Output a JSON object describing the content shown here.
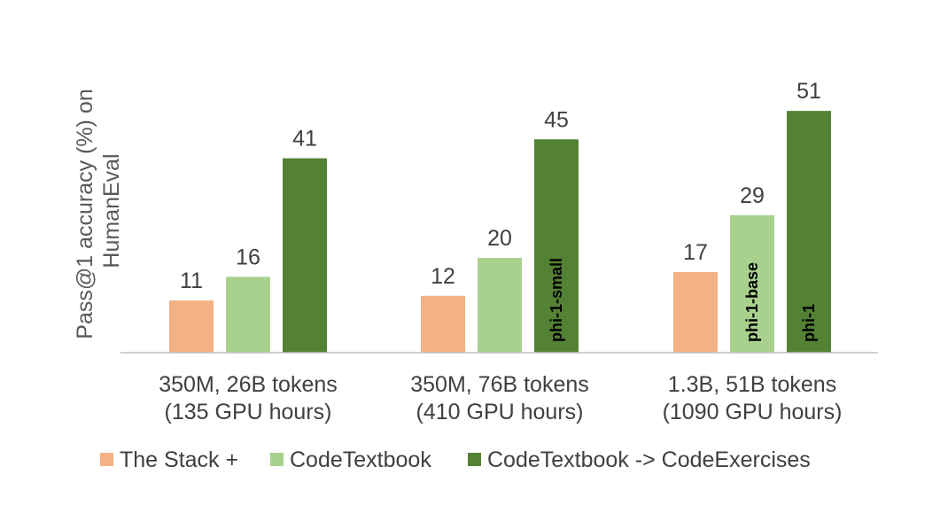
{
  "chart_data": {
    "type": "bar",
    "title": "",
    "xlabel": "",
    "ylabel": "Pass@1 accuracy (%) on HumanEval",
    "ylim": [
      0,
      55
    ],
    "grid": false,
    "legend_position": "bottom",
    "categories": [
      {
        "line1": "350M, 26B tokens",
        "line2": "(135 GPU hours)"
      },
      {
        "line1": "350M, 76B tokens",
        "line2": "(410 GPU hours)"
      },
      {
        "line1": "1.3B, 51B tokens",
        "line2": "(1090 GPU hours)"
      }
    ],
    "series": [
      {
        "name": "The Stack +",
        "color": "#f4b183",
        "values": [
          11,
          12,
          17
        ],
        "labels": [
          "11",
          "12",
          "17"
        ],
        "annotations": [
          "",
          "",
          ""
        ]
      },
      {
        "name": "CodeTextbook",
        "color": "#a9d18e",
        "values": [
          16,
          20,
          29
        ],
        "labels": [
          "16",
          "20",
          "29"
        ],
        "annotations": [
          "",
          "",
          "phi-1-base"
        ]
      },
      {
        "name": "CodeTextbook -> CodeExercises",
        "color": "#548235",
        "values": [
          41,
          45,
          51
        ],
        "labels": [
          "41",
          "45",
          "51"
        ],
        "annotations": [
          "",
          "phi-1-small",
          "phi-1"
        ]
      }
    ]
  }
}
